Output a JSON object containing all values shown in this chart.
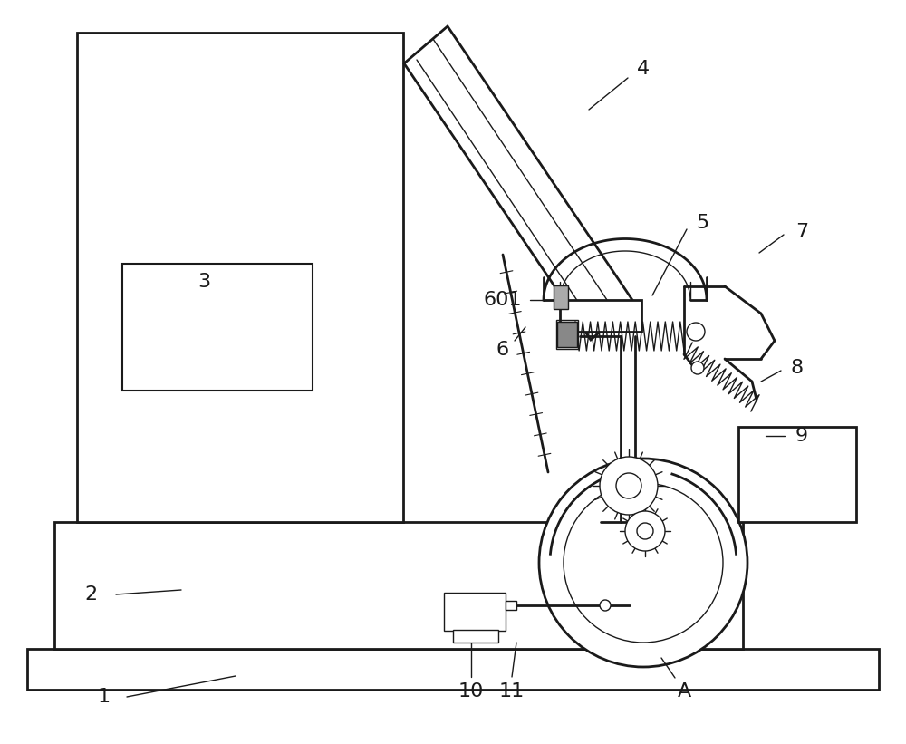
{
  "bg_color": "#ffffff",
  "line_color": "#1a1a1a",
  "lw_thick": 2.0,
  "lw_med": 1.5,
  "lw_thin": 1.0,
  "label_fontsize": 16,
  "fig_width": 10.0,
  "fig_height": 8.21
}
